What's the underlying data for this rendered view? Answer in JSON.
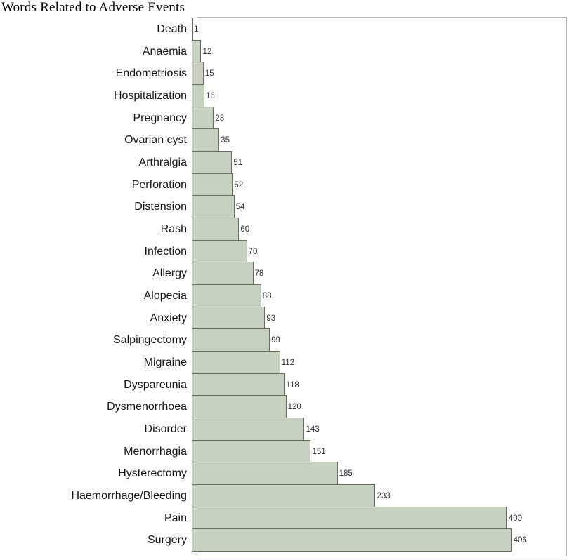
{
  "chart_data": {
    "type": "bar",
    "orientation": "horizontal",
    "title": "Words Related to Adverse Events",
    "xlabel": "",
    "ylabel": "",
    "xlim": [
      0,
      475
    ],
    "grid": false,
    "legend": false,
    "value_labels": true,
    "categories": [
      "Death",
      "Anaemia",
      "Endometriosis",
      "Hospitalization",
      "Pregnancy",
      "Ovarian cyst",
      "Arthralgia",
      "Perforation",
      "Distension",
      "Rash",
      "Infection",
      "Allergy",
      "Alopecia",
      "Anxiety",
      "Salpingectomy",
      "Migraine",
      "Dyspareunia",
      "Dysmenorrhoea",
      "Disorder",
      "Menorrhagia",
      "Hysterectomy",
      "Haemorrhage/Bleeding",
      "Pain",
      "Surgery"
    ],
    "values": [
      1,
      12,
      15,
      16,
      28,
      35,
      51,
      52,
      54,
      60,
      70,
      78,
      88,
      93,
      99,
      112,
      118,
      120,
      143,
      151,
      185,
      233,
      400,
      406
    ]
  },
  "colors": {
    "bar_fill": "#c6d1c2",
    "bar_border": "#657061",
    "plot_border": "#b6b6b6",
    "label_text": "#161616",
    "value_text": "#2f2f2f",
    "title_text": "#000000"
  }
}
